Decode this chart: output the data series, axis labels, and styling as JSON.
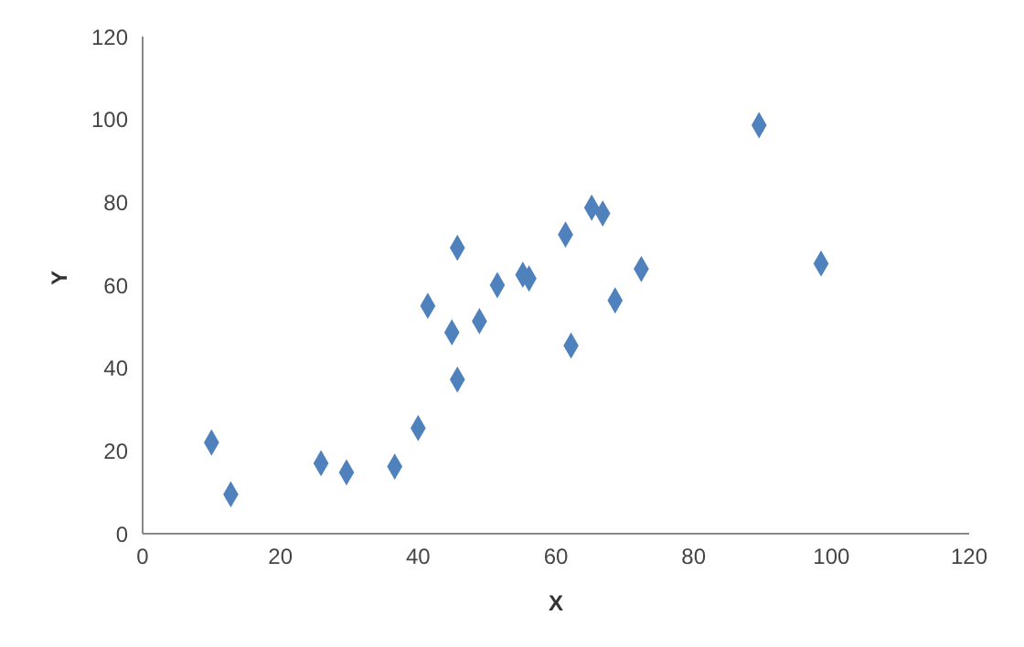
{
  "chart_data": {
    "type": "scatter",
    "xlabel": "X",
    "ylabel": "Y",
    "marker": "diamond",
    "color": "#4f81bd",
    "x": [
      10,
      12.8,
      25.9,
      29.6,
      36.6,
      40,
      41.4,
      44.9,
      45.7,
      45.7,
      48.9,
      51.5,
      55.2,
      56.1,
      61.4,
      62.2,
      65.2,
      66.8,
      68.6,
      72.4,
      89.5,
      98.5
    ],
    "values": [
      22,
      9.5,
      17,
      14.8,
      16.2,
      25.5,
      55,
      48.6,
      69,
      37.2,
      51.3,
      60,
      62.5,
      61.6,
      72.2,
      45.4,
      78.7,
      77.3,
      56.3,
      63.9,
      98.6,
      65.2
    ],
    "xlim": [
      0,
      120
    ],
    "xticks": [
      0,
      20,
      40,
      60,
      80,
      100,
      120
    ],
    "ylim": [
      0,
      120
    ],
    "yticks": [
      0,
      20,
      40,
      60,
      80,
      100,
      120
    ],
    "grid": false,
    "legend": false
  }
}
